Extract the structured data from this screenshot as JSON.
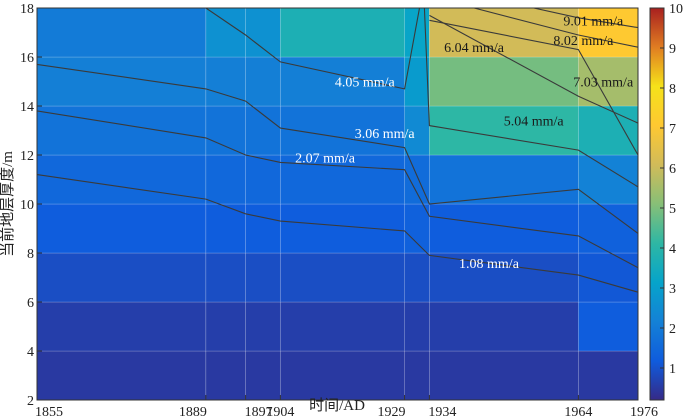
{
  "chart_data": {
    "type": "heatmap",
    "title": "",
    "xlabel": "时间/AD",
    "ylabel": "当前地层厚度/m",
    "x_edges": [
      1855,
      1889,
      1897,
      1904,
      1929,
      1934,
      1964,
      1976
    ],
    "xtick_labels": [
      "1855",
      "1889",
      "1897",
      "1904",
      "1929",
      "1934",
      "1964",
      "1976"
    ],
    "y_edges": [
      2,
      4,
      6,
      8,
      10,
      12,
      14,
      16,
      18
    ],
    "ytick_labels": [
      "2",
      "4",
      "6",
      "8",
      "10",
      "12",
      "14",
      "16",
      "18"
    ],
    "xlim": [
      1855,
      1976
    ],
    "ylim": [
      2,
      18
    ],
    "color_range": [
      0.2,
      10
    ],
    "colorbar_ticks": [
      "1",
      "2",
      "3",
      "4",
      "5",
      "6",
      "7",
      "8",
      "9",
      "10"
    ],
    "colormap": "parula",
    "cells": [
      [
        0.5,
        0.5,
        0.5,
        0.5,
        0.5,
        0.5,
        0.5
      ],
      [
        0.6,
        0.6,
        0.6,
        0.6,
        0.6,
        0.6,
        1.2
      ],
      [
        0.9,
        0.9,
        0.9,
        0.9,
        0.9,
        0.9,
        1.1
      ],
      [
        1.2,
        1.2,
        1.2,
        1.2,
        1.3,
        1.2,
        1.3
      ],
      [
        1.5,
        1.5,
        1.5,
        1.5,
        1.6,
        1.8,
        2.2
      ],
      [
        1.8,
        1.8,
        1.8,
        1.8,
        2.4,
        4.1,
        3.7
      ],
      [
        2.1,
        2.1,
        2.1,
        2.1,
        2.9,
        4.9,
        5.5
      ],
      [
        2.0,
        2.6,
        2.6,
        3.7,
        3.2,
        6.1,
        7.1
      ]
    ],
    "contours": [
      {
        "level": "1.08 mm/a",
        "points": [
          [
            1855,
            11.2
          ],
          [
            1889,
            10.2
          ],
          [
            1897,
            9.6
          ],
          [
            1904,
            9.3
          ],
          [
            1929,
            8.9
          ],
          [
            1934,
            7.9
          ],
          [
            1964,
            7.1
          ],
          [
            1976,
            6.4
          ]
        ]
      },
      {
        "level": "2.07 mm/a",
        "points": [
          [
            1855,
            13.8
          ],
          [
            1889,
            12.7
          ],
          [
            1897,
            12.0
          ],
          [
            1904,
            11.7
          ],
          [
            1929,
            11.4
          ],
          [
            1934,
            9.5
          ],
          [
            1964,
            8.7
          ],
          [
            1976,
            7.4
          ]
        ]
      },
      {
        "level": "3.06 mm/a",
        "points": [
          [
            1855,
            15.7
          ],
          [
            1889,
            14.7
          ],
          [
            1897,
            14.2
          ],
          [
            1904,
            13.1
          ],
          [
            1929,
            12.3
          ],
          [
            1934,
            10.0
          ],
          [
            1964,
            10.6
          ],
          [
            1976,
            8.8
          ]
        ]
      },
      {
        "level": "4.05 mm/a",
        "points": [
          [
            1889,
            18.0
          ],
          [
            1897,
            16.9
          ],
          [
            1904,
            15.8
          ],
          [
            1929,
            14.7
          ],
          [
            1932,
            18.0
          ]
        ]
      },
      {
        "level": "5.04 mm/a",
        "points": [
          [
            1933,
            18.0
          ],
          [
            1934,
            13.2
          ],
          [
            1964,
            12.2
          ],
          [
            1976,
            10.7
          ]
        ]
      },
      {
        "level": "6.04 mm/a",
        "points": [
          [
            1934,
            17.5
          ],
          [
            1964,
            16.3
          ],
          [
            1976,
            12.0
          ]
        ]
      },
      {
        "level": "7.03 mm/a",
        "points": [
          [
            1934,
            17.7
          ],
          [
            1964,
            14.4
          ],
          [
            1976,
            13.3
          ]
        ]
      },
      {
        "level": "8.02 mm/a",
        "points": [
          [
            1943,
            18.0
          ],
          [
            1964,
            16.9
          ],
          [
            1976,
            16.4
          ]
        ]
      },
      {
        "level": "9.01 mm/a",
        "points": [
          [
            1955,
            18.0
          ],
          [
            1964,
            17.6
          ],
          [
            1976,
            17.2
          ]
        ]
      }
    ],
    "contour_labels": [
      {
        "text": "1.08 mm/a",
        "x": 1946,
        "y": 7.6,
        "color": "#ffffff"
      },
      {
        "text": "2.07 mm/a",
        "x": 1913,
        "y": 11.9,
        "color": "#ffffff"
      },
      {
        "text": "3.06 mm/a",
        "x": 1925,
        "y": 12.9,
        "color": "#ffffff"
      },
      {
        "text": "4.05 mm/a",
        "x": 1921,
        "y": 15.0,
        "color": "#ffffff"
      },
      {
        "text": "5.04 mm/a",
        "x": 1955,
        "y": 13.4,
        "color": "#1a1a1a"
      },
      {
        "text": "6.04 mm/a",
        "x": 1943,
        "y": 16.4,
        "color": "#1a1a1a"
      },
      {
        "text": "7.03 mm/a",
        "x": 1969,
        "y": 15.0,
        "color": "#1a1a1a"
      },
      {
        "text": "8.02 mm/a",
        "x": 1965,
        "y": 16.7,
        "color": "#1a1a1a"
      },
      {
        "text": "9.01 mm/a",
        "x": 1967,
        "y": 17.5,
        "color": "#1a1a1a"
      }
    ]
  }
}
